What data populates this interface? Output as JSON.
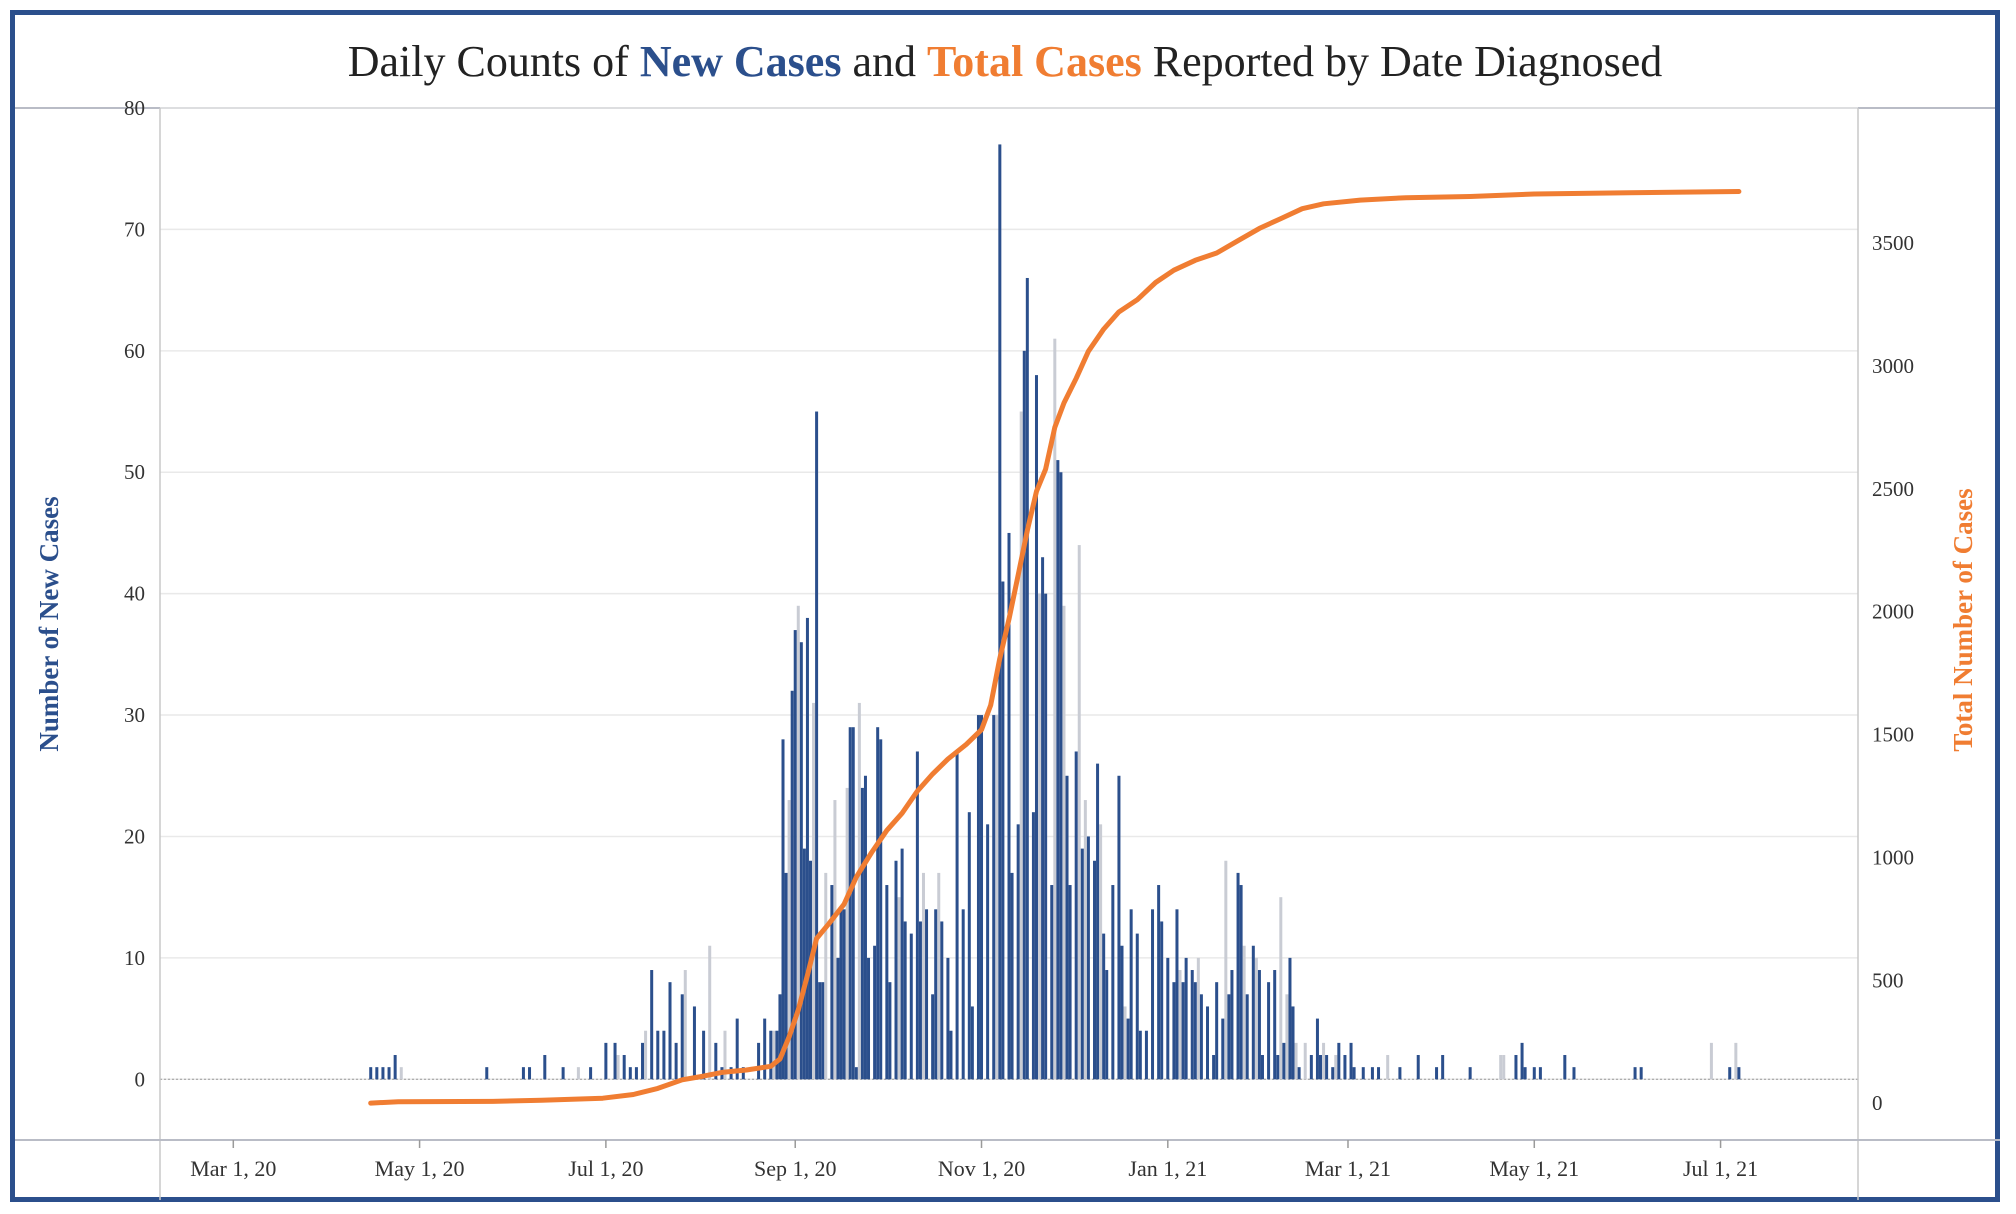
{
  "title": {
    "prefix": "Daily Counts of ",
    "new_cases": "New Cases",
    "middle": " and ",
    "total_cases": "Total Cases",
    "suffix": " Reported by Date Diagnosed"
  },
  "colors": {
    "new_cases": "#2b4f8c",
    "total_cases": "#f07d32",
    "bar_light": "#c9ccd4",
    "grid": "#e9e9e9",
    "border": "#2b4f8c"
  },
  "chart_data": {
    "type": "bar+line",
    "x_axis": {
      "type": "date",
      "range": [
        "2020-02-06",
        "2021-08-15"
      ],
      "ticks": [
        {
          "date": "2020-03-01",
          "label": "Mar 1, 20"
        },
        {
          "date": "2020-05-01",
          "label": "May 1, 20"
        },
        {
          "date": "2020-07-01",
          "label": "Jul 1, 20"
        },
        {
          "date": "2020-09-01",
          "label": "Sep 1, 20"
        },
        {
          "date": "2020-11-01",
          "label": "Nov 1, 20"
        },
        {
          "date": "2021-01-01",
          "label": "Jan 1, 21"
        },
        {
          "date": "2021-03-01",
          "label": "Mar 1, 21"
        },
        {
          "date": "2021-05-01",
          "label": "May 1, 21"
        },
        {
          "date": "2021-07-01",
          "label": "Jul 1, 21"
        }
      ]
    },
    "y_left": {
      "label": "Number of New Cases",
      "range": [
        -5,
        80
      ],
      "ticks": [
        0,
        10,
        20,
        30,
        40,
        50,
        60,
        70,
        80
      ]
    },
    "y_right": {
      "label": "Total Number of Cases",
      "range": [
        -150,
        4050
      ],
      "ticks": [
        0,
        500,
        1000,
        1500,
        2000,
        2500,
        3000,
        3500
      ]
    },
    "grid": true,
    "new_cases": [
      [
        "2020-04-15",
        1
      ],
      [
        "2020-04-17",
        1
      ],
      [
        "2020-04-19",
        1
      ],
      [
        "2020-04-21",
        1
      ],
      [
        "2020-04-23",
        2
      ],
      [
        "2020-05-23",
        1
      ],
      [
        "2020-06-04",
        1
      ],
      [
        "2020-06-06",
        1
      ],
      [
        "2020-06-11",
        2
      ],
      [
        "2020-06-17",
        1
      ],
      [
        "2020-06-26",
        1
      ],
      [
        "2020-07-01",
        3
      ],
      [
        "2020-07-04",
        3
      ],
      [
        "2020-07-07",
        2
      ],
      [
        "2020-07-09",
        1
      ],
      [
        "2020-07-11",
        1
      ],
      [
        "2020-07-13",
        3
      ],
      [
        "2020-07-16",
        9
      ],
      [
        "2020-07-18",
        4
      ],
      [
        "2020-07-20",
        4
      ],
      [
        "2020-07-22",
        8
      ],
      [
        "2020-07-24",
        3
      ],
      [
        "2020-07-26",
        7
      ],
      [
        "2020-07-30",
        6
      ],
      [
        "2020-08-02",
        4
      ],
      [
        "2020-08-06",
        3
      ],
      [
        "2020-08-08",
        1
      ],
      [
        "2020-08-11",
        1
      ],
      [
        "2020-08-13",
        5
      ],
      [
        "2020-08-15",
        1
      ],
      [
        "2020-08-20",
        3
      ],
      [
        "2020-08-22",
        5
      ],
      [
        "2020-08-24",
        4
      ],
      [
        "2020-08-26",
        4
      ],
      [
        "2020-08-27",
        7
      ],
      [
        "2020-08-28",
        28
      ],
      [
        "2020-08-29",
        17
      ],
      [
        "2020-08-31",
        32
      ],
      [
        "2020-09-01",
        37
      ],
      [
        "2020-09-03",
        36
      ],
      [
        "2020-09-04",
        19
      ],
      [
        "2020-09-05",
        38
      ],
      [
        "2020-09-06",
        18
      ],
      [
        "2020-09-08",
        55
      ],
      [
        "2020-09-09",
        8
      ],
      [
        "2020-09-10",
        8
      ],
      [
        "2020-09-13",
        16
      ],
      [
        "2020-09-15",
        10
      ],
      [
        "2020-09-16",
        14
      ],
      [
        "2020-09-17",
        14
      ],
      [
        "2020-09-19",
        29
      ],
      [
        "2020-09-20",
        29
      ],
      [
        "2020-09-21",
        1
      ],
      [
        "2020-09-23",
        24
      ],
      [
        "2020-09-24",
        25
      ],
      [
        "2020-09-25",
        10
      ],
      [
        "2020-09-27",
        11
      ],
      [
        "2020-09-28",
        29
      ],
      [
        "2020-09-29",
        28
      ],
      [
        "2020-10-01",
        16
      ],
      [
        "2020-10-02",
        8
      ],
      [
        "2020-10-04",
        18
      ],
      [
        "2020-10-06",
        19
      ],
      [
        "2020-10-07",
        13
      ],
      [
        "2020-10-09",
        12
      ],
      [
        "2020-10-11",
        27
      ],
      [
        "2020-10-12",
        13
      ],
      [
        "2020-10-14",
        14
      ],
      [
        "2020-10-16",
        7
      ],
      [
        "2020-10-17",
        14
      ],
      [
        "2020-10-19",
        13
      ],
      [
        "2020-10-21",
        10
      ],
      [
        "2020-10-22",
        4
      ],
      [
        "2020-10-24",
        27
      ],
      [
        "2020-10-26",
        14
      ],
      [
        "2020-10-28",
        22
      ],
      [
        "2020-10-29",
        6
      ],
      [
        "2020-10-31",
        30
      ],
      [
        "2020-11-01",
        30
      ],
      [
        "2020-11-03",
        21
      ],
      [
        "2020-11-05",
        30
      ],
      [
        "2020-11-07",
        77
      ],
      [
        "2020-11-08",
        41
      ],
      [
        "2020-11-10",
        45
      ],
      [
        "2020-11-11",
        17
      ],
      [
        "2020-11-13",
        21
      ],
      [
        "2020-11-15",
        60
      ],
      [
        "2020-11-16",
        66
      ],
      [
        "2020-11-18",
        22
      ],
      [
        "2020-11-19",
        58
      ],
      [
        "2020-11-21",
        43
      ],
      [
        "2020-11-22",
        40
      ],
      [
        "2020-11-24",
        16
      ],
      [
        "2020-11-26",
        51
      ],
      [
        "2020-11-27",
        50
      ],
      [
        "2020-11-29",
        25
      ],
      [
        "2020-11-30",
        16
      ],
      [
        "2020-12-02",
        27
      ],
      [
        "2020-12-04",
        19
      ],
      [
        "2020-12-06",
        20
      ],
      [
        "2020-12-08",
        18
      ],
      [
        "2020-12-09",
        26
      ],
      [
        "2020-12-11",
        12
      ],
      [
        "2020-12-12",
        9
      ],
      [
        "2020-12-14",
        16
      ],
      [
        "2020-12-16",
        25
      ],
      [
        "2020-12-17",
        11
      ],
      [
        "2020-12-19",
        5
      ],
      [
        "2020-12-20",
        14
      ],
      [
        "2020-12-22",
        12
      ],
      [
        "2020-12-23",
        4
      ],
      [
        "2020-12-25",
        4
      ],
      [
        "2020-12-27",
        14
      ],
      [
        "2020-12-29",
        16
      ],
      [
        "2020-12-30",
        13
      ],
      [
        "2021-01-01",
        10
      ],
      [
        "2021-01-03",
        8
      ],
      [
        "2021-01-04",
        14
      ],
      [
        "2021-01-06",
        8
      ],
      [
        "2021-01-07",
        10
      ],
      [
        "2021-01-09",
        9
      ],
      [
        "2021-01-10",
        8
      ],
      [
        "2021-01-12",
        7
      ],
      [
        "2021-01-14",
        6
      ],
      [
        "2021-01-16",
        2
      ],
      [
        "2021-01-17",
        8
      ],
      [
        "2021-01-19",
        5
      ],
      [
        "2021-01-21",
        7
      ],
      [
        "2021-01-22",
        9
      ],
      [
        "2021-01-24",
        17
      ],
      [
        "2021-01-25",
        16
      ],
      [
        "2021-01-27",
        7
      ],
      [
        "2021-01-29",
        11
      ],
      [
        "2021-01-31",
        9
      ],
      [
        "2021-02-01",
        2
      ],
      [
        "2021-02-03",
        8
      ],
      [
        "2021-02-05",
        9
      ],
      [
        "2021-02-06",
        2
      ],
      [
        "2021-02-08",
        3
      ],
      [
        "2021-02-10",
        10
      ],
      [
        "2021-02-11",
        6
      ],
      [
        "2021-02-13",
        1
      ],
      [
        "2021-02-17",
        2
      ],
      [
        "2021-02-19",
        5
      ],
      [
        "2021-02-20",
        2
      ],
      [
        "2021-02-22",
        2
      ],
      [
        "2021-02-24",
        1
      ],
      [
        "2021-02-26",
        3
      ],
      [
        "2021-02-28",
        2
      ],
      [
        "2021-03-02",
        3
      ],
      [
        "2021-03-03",
        1
      ],
      [
        "2021-03-06",
        1
      ],
      [
        "2021-03-09",
        1
      ],
      [
        "2021-03-11",
        1
      ],
      [
        "2021-03-18",
        1
      ],
      [
        "2021-03-24",
        2
      ],
      [
        "2021-03-30",
        1
      ],
      [
        "2021-04-01",
        2
      ],
      [
        "2021-04-10",
        1
      ],
      [
        "2021-04-25",
        2
      ],
      [
        "2021-04-27",
        3
      ],
      [
        "2021-04-28",
        1
      ],
      [
        "2021-05-01",
        1
      ],
      [
        "2021-05-03",
        1
      ],
      [
        "2021-05-11",
        2
      ],
      [
        "2021-05-14",
        1
      ],
      [
        "2021-06-03",
        1
      ],
      [
        "2021-06-05",
        1
      ],
      [
        "2021-07-04",
        1
      ],
      [
        "2021-07-07",
        1
      ]
    ],
    "new_cases_light": [
      [
        "2020-04-25",
        1
      ],
      [
        "2020-06-22",
        1
      ],
      [
        "2020-07-05",
        2
      ],
      [
        "2020-07-14",
        4
      ],
      [
        "2020-07-27",
        9
      ],
      [
        "2020-08-04",
        11
      ],
      [
        "2020-08-09",
        4
      ],
      [
        "2020-08-25",
        4
      ],
      [
        "2020-08-30",
        23
      ],
      [
        "2020-09-02",
        39
      ],
      [
        "2020-09-07",
        31
      ],
      [
        "2020-09-11",
        17
      ],
      [
        "2020-09-14",
        23
      ],
      [
        "2020-09-18",
        24
      ],
      [
        "2020-09-22",
        31
      ],
      [
        "2020-10-05",
        15
      ],
      [
        "2020-10-13",
        17
      ],
      [
        "2020-10-18",
        17
      ],
      [
        "2020-11-06",
        30
      ],
      [
        "2020-11-14",
        55
      ],
      [
        "2020-11-20",
        40
      ],
      [
        "2020-11-25",
        61
      ],
      [
        "2020-11-28",
        39
      ],
      [
        "2020-12-03",
        44
      ],
      [
        "2020-12-05",
        23
      ],
      [
        "2020-12-10",
        21
      ],
      [
        "2020-12-18",
        6
      ],
      [
        "2021-01-05",
        9
      ],
      [
        "2021-01-11",
        10
      ],
      [
        "2021-01-20",
        18
      ],
      [
        "2021-01-26",
        11
      ],
      [
        "2021-01-30",
        10
      ],
      [
        "2021-02-07",
        15
      ],
      [
        "2021-02-09",
        7
      ],
      [
        "2021-02-12",
        3
      ],
      [
        "2021-02-15",
        3
      ],
      [
        "2021-02-21",
        3
      ],
      [
        "2021-02-25",
        2
      ],
      [
        "2021-03-14",
        2
      ],
      [
        "2021-04-20",
        2
      ],
      [
        "2021-04-21",
        2
      ],
      [
        "2021-06-28",
        3
      ],
      [
        "2021-07-06",
        3
      ]
    ],
    "total_cases": [
      [
        "2020-04-15",
        0
      ],
      [
        "2020-04-24",
        6
      ],
      [
        "2020-05-25",
        7
      ],
      [
        "2020-06-10",
        12
      ],
      [
        "2020-06-30",
        20
      ],
      [
        "2020-07-10",
        35
      ],
      [
        "2020-07-18",
        60
      ],
      [
        "2020-07-26",
        95
      ],
      [
        "2020-08-02",
        110
      ],
      [
        "2020-08-08",
        125
      ],
      [
        "2020-08-16",
        135
      ],
      [
        "2020-08-24",
        150
      ],
      [
        "2020-08-27",
        180
      ],
      [
        "2020-08-30",
        270
      ],
      [
        "2020-09-02",
        380
      ],
      [
        "2020-09-05",
        520
      ],
      [
        "2020-09-08",
        670
      ],
      [
        "2020-09-12",
        730
      ],
      [
        "2020-09-17",
        810
      ],
      [
        "2020-09-21",
        920
      ],
      [
        "2020-09-26",
        1020
      ],
      [
        "2020-10-01",
        1110
      ],
      [
        "2020-10-06",
        1180
      ],
      [
        "2020-10-11",
        1270
      ],
      [
        "2020-10-16",
        1340
      ],
      [
        "2020-10-21",
        1400
      ],
      [
        "2020-10-27",
        1460
      ],
      [
        "2020-11-01",
        1520
      ],
      [
        "2020-11-04",
        1620
      ],
      [
        "2020-11-07",
        1810
      ],
      [
        "2020-11-10",
        1970
      ],
      [
        "2020-11-13",
        2150
      ],
      [
        "2020-11-16",
        2330
      ],
      [
        "2020-11-19",
        2490
      ],
      [
        "2020-11-22",
        2580
      ],
      [
        "2020-11-25",
        2750
      ],
      [
        "2020-11-28",
        2850
      ],
      [
        "2020-12-02",
        2950
      ],
      [
        "2020-12-06",
        3060
      ],
      [
        "2020-12-11",
        3150
      ],
      [
        "2020-12-16",
        3220
      ],
      [
        "2020-12-22",
        3270
      ],
      [
        "2020-12-28",
        3340
      ],
      [
        "2021-01-03",
        3390
      ],
      [
        "2021-01-10",
        3430
      ],
      [
        "2021-01-17",
        3460
      ],
      [
        "2021-01-24",
        3510
      ],
      [
        "2021-01-31",
        3560
      ],
      [
        "2021-02-07",
        3600
      ],
      [
        "2021-02-14",
        3640
      ],
      [
        "2021-02-21",
        3660
      ],
      [
        "2021-03-05",
        3675
      ],
      [
        "2021-03-20",
        3685
      ],
      [
        "2021-04-10",
        3690
      ],
      [
        "2021-05-01",
        3700
      ],
      [
        "2021-06-01",
        3705
      ],
      [
        "2021-07-07",
        3710
      ]
    ]
  }
}
